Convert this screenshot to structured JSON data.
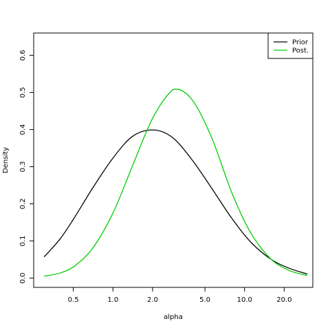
{
  "chart_data": {
    "type": "line",
    "xlabel": "alpha",
    "ylabel": "Density",
    "x_scale": "log",
    "xlim": [
      0.25,
      33
    ],
    "ylim": [
      -0.025,
      0.66
    ],
    "x_ticks": [
      0.5,
      1.0,
      2.0,
      5.0,
      10.0,
      20.0
    ],
    "x_tick_labels": [
      "0.5",
      "1.0",
      "2.0",
      "5.0",
      "10.0",
      "20.0"
    ],
    "y_ticks": [
      0.0,
      0.1,
      0.2,
      0.3,
      0.4,
      0.5,
      0.6
    ],
    "y_tick_labels": [
      "0.0",
      "0.1",
      "0.2",
      "0.3",
      "0.4",
      "0.5",
      "0.6"
    ],
    "grid": false,
    "legend_position": "top-right",
    "series": [
      {
        "name": "Prior",
        "color": "#000000",
        "x": [
          0.3,
          0.4,
          0.5,
          0.7,
          1.0,
          1.4,
          2.0,
          2.8,
          4.0,
          5.6,
          8.0,
          11.0,
          16.0,
          22.0,
          30.0
        ],
        "y": [
          0.057,
          0.107,
          0.158,
          0.242,
          0.323,
          0.381,
          0.399,
          0.38,
          0.318,
          0.243,
          0.161,
          0.099,
          0.05,
          0.026,
          0.011
        ]
      },
      {
        "name": "Post.",
        "color": "#00cc00",
        "x": [
          0.3,
          0.4,
          0.5,
          0.7,
          1.0,
          1.4,
          2.0,
          2.8,
          3.0,
          4.0,
          5.6,
          8.0,
          11.0,
          16.0,
          22.0,
          30.0
        ],
        "y": [
          0.005,
          0.014,
          0.03,
          0.08,
          0.175,
          0.3,
          0.43,
          0.505,
          0.509,
          0.48,
          0.38,
          0.23,
          0.125,
          0.05,
          0.02,
          0.007
        ]
      }
    ]
  }
}
